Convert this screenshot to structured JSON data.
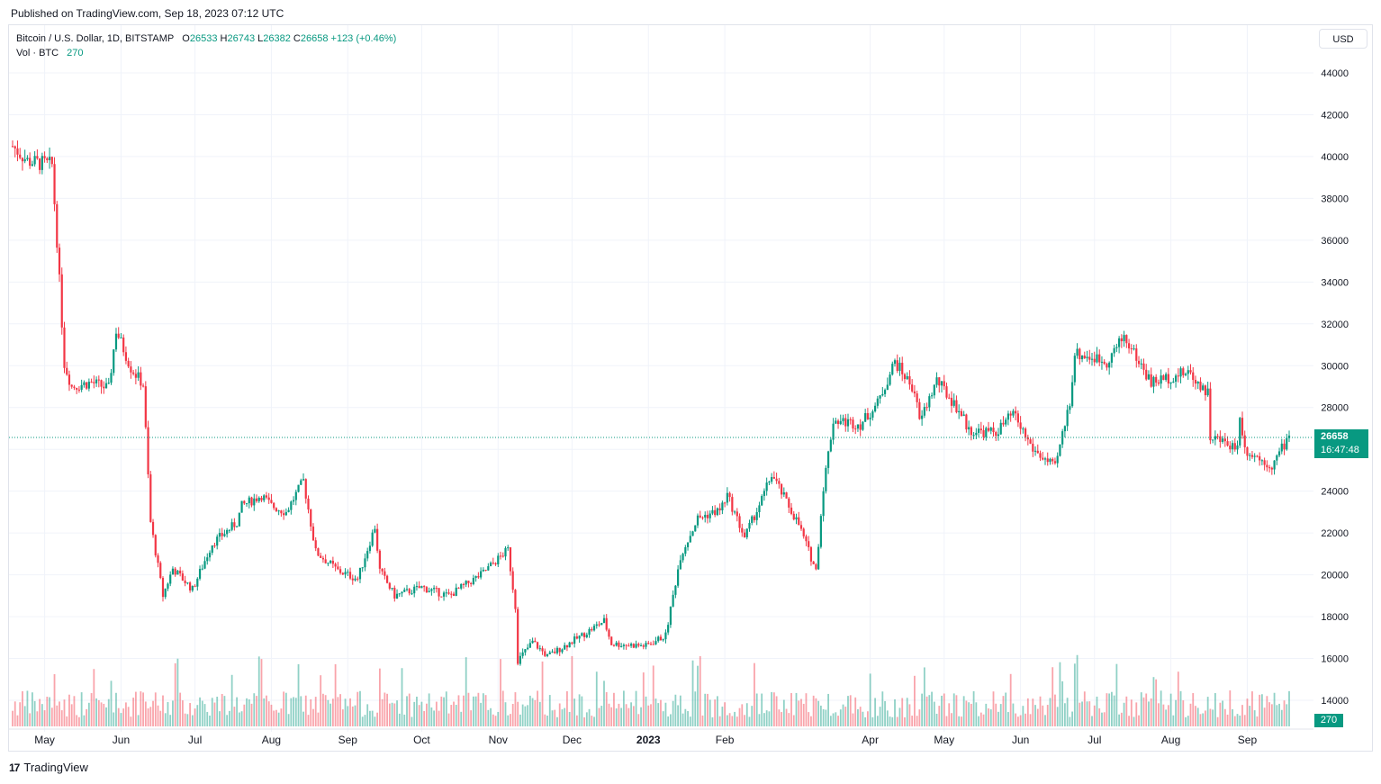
{
  "header": {
    "published": "Published on TradingView.com, Sep 18, 2023 07:12 UTC"
  },
  "legend": {
    "symbol": "Bitcoin / U.S. Dollar, 1D, BITSTAMP",
    "open_label": "O",
    "open": "26533",
    "high_label": "H",
    "high": "26743",
    "low_label": "L",
    "low": "26382",
    "close_label": "C",
    "close": "26658",
    "change": "+123 (+0.46%)",
    "vol_label": "Vol · BTC",
    "vol_value": "270"
  },
  "currency_button": "USD",
  "last_price": {
    "price": "26658",
    "countdown": "16:47:48"
  },
  "volume_tag": "270",
  "footer": {
    "logo": "17",
    "brand": "TradingView"
  },
  "colors": {
    "up": "#089981",
    "down": "#f23645",
    "grid": "#f0f3fa",
    "text": "#131722"
  },
  "chart_data": {
    "type": "candlestick",
    "title": "Bitcoin / U.S. Dollar, 1D, BITSTAMP",
    "y_ticks": [
      14000,
      16000,
      18000,
      20000,
      22000,
      24000,
      26000,
      28000,
      30000,
      32000,
      34000,
      36000,
      38000,
      40000,
      42000,
      44000
    ],
    "ylim": [
      13000,
      45000
    ],
    "x_ticks": [
      "May",
      "Jun",
      "Jul",
      "Aug",
      "Sep",
      "Oct",
      "Nov",
      "Dec",
      "2023",
      "Feb",
      "Apr",
      "May",
      "Jun",
      "Jul",
      "Aug",
      "Sep"
    ],
    "x_tick_dates": [
      "2022-05-01",
      "2022-06-01",
      "2022-07-01",
      "2022-08-01",
      "2022-09-01",
      "2022-10-01",
      "2022-11-01",
      "2022-12-01",
      "2023-01-01",
      "2023-02-01",
      "2023-04-01",
      "2023-05-01",
      "2023-06-01",
      "2023-07-01",
      "2023-08-01",
      "2023-09-01"
    ],
    "date_range": [
      "2022-04-18",
      "2023-09-18"
    ],
    "close_points": [
      [
        "2022-04-18",
        40500
      ],
      [
        "2022-04-24",
        39800
      ],
      [
        "2022-04-28",
        39700
      ],
      [
        "2022-05-04",
        39600
      ],
      [
        "2022-05-06",
        36000
      ],
      [
        "2022-05-09",
        30100
      ],
      [
        "2022-05-12",
        29000
      ],
      [
        "2022-05-20",
        29200
      ],
      [
        "2022-05-27",
        28900
      ],
      [
        "2022-05-30",
        31700
      ],
      [
        "2022-06-05",
        29900
      ],
      [
        "2022-06-10",
        29100
      ],
      [
        "2022-06-13",
        22500
      ],
      [
        "2022-06-18",
        19000
      ],
      [
        "2022-06-22",
        20300
      ],
      [
        "2022-06-30",
        19300
      ],
      [
        "2022-07-08",
        21500
      ],
      [
        "2022-07-18",
        22500
      ],
      [
        "2022-07-20",
        23300
      ],
      [
        "2022-07-28",
        23800
      ],
      [
        "2022-08-01",
        23300
      ],
      [
        "2022-08-07",
        23000
      ],
      [
        "2022-08-14",
        24500
      ],
      [
        "2022-08-19",
        21100
      ],
      [
        "2022-08-28",
        20200
      ],
      [
        "2022-09-05",
        19800
      ],
      [
        "2022-09-12",
        22300
      ],
      [
        "2022-09-14",
        20200
      ],
      [
        "2022-09-20",
        19000
      ],
      [
        "2022-10-01",
        19400
      ],
      [
        "2022-10-12",
        19000
      ],
      [
        "2022-10-25",
        20000
      ],
      [
        "2022-11-05",
        21200
      ],
      [
        "2022-11-08",
        18500
      ],
      [
        "2022-11-09",
        15900
      ],
      [
        "2022-11-15",
        16800
      ],
      [
        "2022-11-21",
        16100
      ],
      [
        "2022-12-05",
        17100
      ],
      [
        "2022-12-14",
        17800
      ],
      [
        "2022-12-17",
        16700
      ],
      [
        "2022-12-31",
        16600
      ],
      [
        "2023-01-08",
        17100
      ],
      [
        "2023-01-14",
        20900
      ],
      [
        "2023-01-21",
        22700
      ],
      [
        "2023-01-30",
        23100
      ],
      [
        "2023-02-02",
        23800
      ],
      [
        "2023-02-09",
        21800
      ],
      [
        "2023-02-16",
        23600
      ],
      [
        "2023-02-20",
        24800
      ],
      [
        "2023-03-03",
        22400
      ],
      [
        "2023-03-10",
        20200
      ],
      [
        "2023-03-13",
        24200
      ],
      [
        "2023-03-17",
        27400
      ],
      [
        "2023-03-28",
        27200
      ],
      [
        "2023-04-04",
        28200
      ],
      [
        "2023-04-11",
        30200
      ],
      [
        "2023-04-19",
        28800
      ],
      [
        "2023-04-21",
        27300
      ],
      [
        "2023-04-28",
        29300
      ],
      [
        "2023-05-08",
        27700
      ],
      [
        "2023-05-11",
        26900
      ],
      [
        "2023-05-22",
        26800
      ],
      [
        "2023-05-29",
        27700
      ],
      [
        "2023-06-06",
        26000
      ],
      [
        "2023-06-15",
        25100
      ],
      [
        "2023-06-21",
        28300
      ],
      [
        "2023-06-23",
        30600
      ],
      [
        "2023-07-06",
        30200
      ],
      [
        "2023-07-13",
        31400
      ],
      [
        "2023-07-24",
        29200
      ],
      [
        "2023-08-08",
        29700
      ],
      [
        "2023-08-16",
        28700
      ],
      [
        "2023-08-17",
        26600
      ],
      [
        "2023-08-28",
        26100
      ],
      [
        "2023-08-29",
        27700
      ],
      [
        "2023-08-31",
        26000
      ],
      [
        "2023-09-11",
        25200
      ],
      [
        "2023-09-18",
        26658
      ]
    ],
    "last": {
      "open": 26533,
      "high": 26743,
      "low": 26382,
      "close": 26658,
      "change": 123,
      "change_pct": 0.46
    },
    "volume_last": 270,
    "grid": true
  }
}
